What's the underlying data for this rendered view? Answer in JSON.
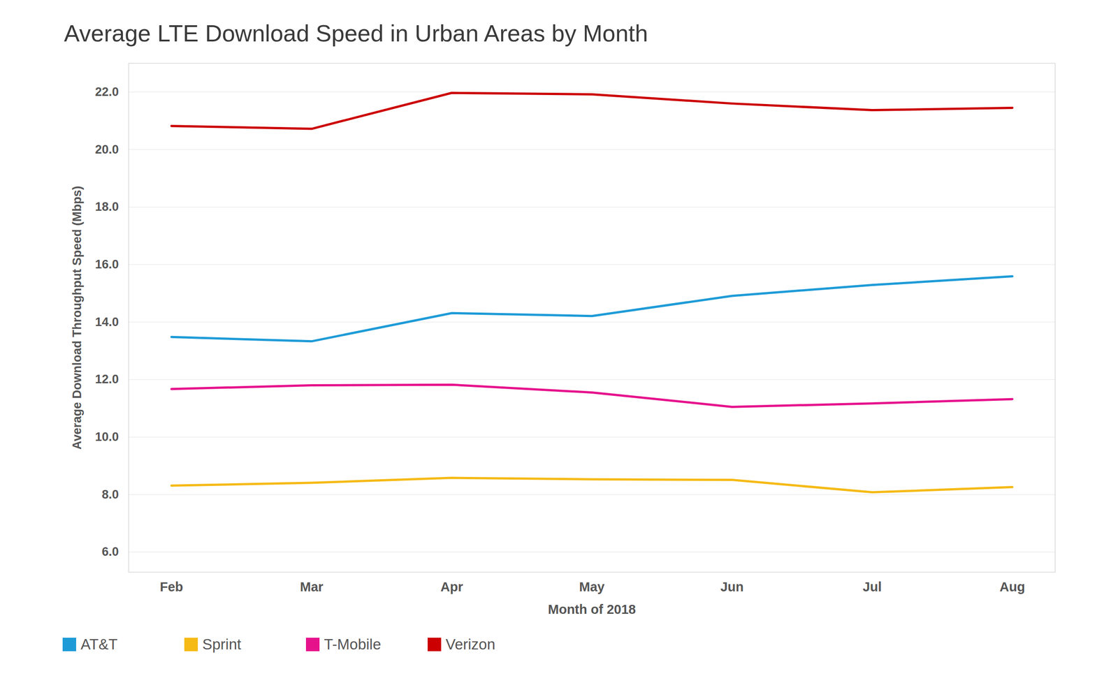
{
  "chart_data": {
    "type": "line",
    "title": "Average LTE Download Speed in Urban Areas by Month",
    "x_label": "Month of 2018",
    "y_label": "Average Download Throughput Speed (Mbps)",
    "categories": [
      "Feb",
      "Mar",
      "Apr",
      "May",
      "Jun",
      "Jul",
      "Aug"
    ],
    "series": [
      {
        "name": "AT&T",
        "color": "#1e9bd7",
        "values": [
          13.48,
          13.33,
          14.31,
          14.21,
          14.91,
          15.29,
          15.59
        ]
      },
      {
        "name": "Sprint",
        "color": "#f5ba16",
        "values": [
          8.31,
          8.41,
          8.58,
          8.53,
          8.51,
          8.08,
          8.26
        ]
      },
      {
        "name": "T-Mobile",
        "color": "#e6128c",
        "values": [
          11.67,
          11.8,
          11.82,
          11.55,
          11.05,
          11.17,
          11.32
        ]
      },
      {
        "name": "Verizon",
        "color": "#cc0000",
        "values": [
          20.82,
          20.72,
          21.97,
          21.92,
          21.6,
          21.37,
          21.45
        ]
      }
    ],
    "ylim": [
      5.3,
      23
    ],
    "yticks": [
      6,
      8,
      10,
      12,
      14,
      16,
      18,
      20,
      22
    ],
    "grid": true,
    "legend": "bottom-left"
  }
}
